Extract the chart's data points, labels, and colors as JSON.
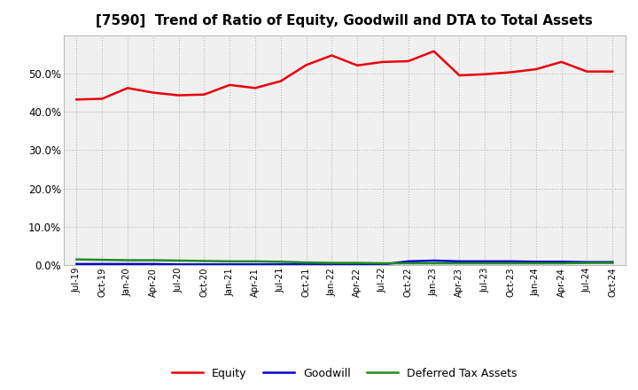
{
  "title": "[7590]  Trend of Ratio of Equity, Goodwill and DTA to Total Assets",
  "x_labels": [
    "Jul-19",
    "Oct-19",
    "Jan-20",
    "Apr-20",
    "Jul-20",
    "Oct-20",
    "Jan-21",
    "Apr-21",
    "Jul-21",
    "Oct-21",
    "Jan-22",
    "Apr-22",
    "Jul-22",
    "Oct-22",
    "Jan-23",
    "Apr-23",
    "Jul-23",
    "Oct-23",
    "Jan-24",
    "Apr-24",
    "Jul-24",
    "Oct-24"
  ],
  "equity": [
    0.432,
    0.434,
    0.462,
    0.45,
    0.443,
    0.445,
    0.47,
    0.462,
    0.48,
    0.522,
    0.547,
    0.521,
    0.53,
    0.532,
    0.558,
    0.495,
    0.498,
    0.503,
    0.511,
    0.53,
    0.505,
    0.505
  ],
  "goodwill": [
    0.003,
    0.003,
    0.003,
    0.003,
    0.002,
    0.002,
    0.002,
    0.002,
    0.002,
    0.002,
    0.002,
    0.002,
    0.002,
    0.01,
    0.012,
    0.01,
    0.01,
    0.01,
    0.009,
    0.009,
    0.008,
    0.008
  ],
  "dta": [
    0.015,
    0.014,
    0.013,
    0.013,
    0.012,
    0.011,
    0.01,
    0.01,
    0.009,
    0.007,
    0.006,
    0.006,
    0.005,
    0.005,
    0.005,
    0.005,
    0.005,
    0.005,
    0.005,
    0.005,
    0.006,
    0.006
  ],
  "equity_color": "#e8000d",
  "goodwill_color": "#0000cd",
  "dta_color": "#228B22",
  "background_color": "#ffffff",
  "plot_bg_color": "#f0f0f0",
  "ylim": [
    0.0,
    0.6
  ],
  "yticks": [
    0.0,
    0.1,
    0.2,
    0.3,
    0.4,
    0.5
  ],
  "legend_labels": [
    "Equity",
    "Goodwill",
    "Deferred Tax Assets"
  ],
  "grid_color": "#bbbbbb",
  "linewidth": 1.8,
  "title_fontsize": 11
}
